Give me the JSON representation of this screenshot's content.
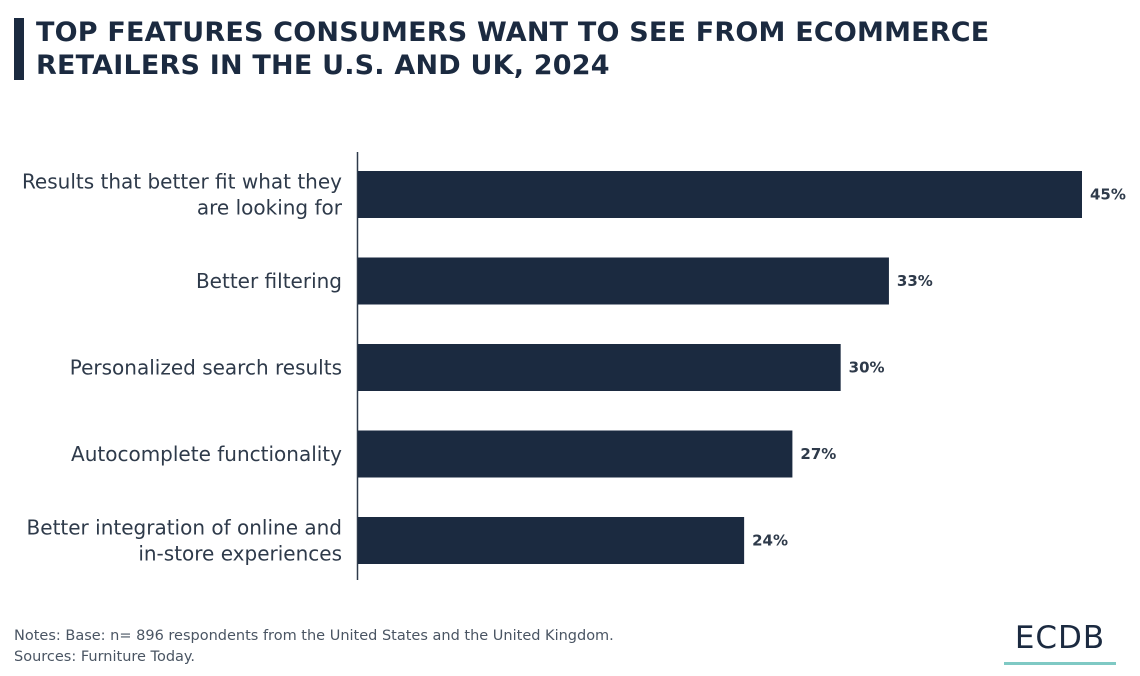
{
  "chart_data": {
    "type": "bar",
    "orientation": "horizontal",
    "title": "TOP FEATURES CONSUMERS WANT TO SEE FROM ECOMMERCE RETAILERS IN THE U.S. AND UK, 2024",
    "categories": [
      [
        "Results that better fit what they",
        "are looking for"
      ],
      [
        "Better filtering"
      ],
      [
        "Personalized search results"
      ],
      [
        "Autocomplete functionality"
      ],
      [
        "Better integration of online and",
        "in-store experiences"
      ]
    ],
    "values": [
      45,
      33,
      30,
      27,
      24
    ],
    "value_labels": [
      "45%",
      "33%",
      "30%",
      "27%",
      "24%"
    ],
    "unit": "%",
    "xlim": [
      0,
      45
    ],
    "bar_color": "#1b2a40",
    "grid": false
  },
  "notes": {
    "line1": "Notes: Base: n= 896 respondents from the United States and the United Kingdom.",
    "line2": "Sources: Furniture Today."
  },
  "logo": {
    "text": "ECDB",
    "accent": "#7fc9c4"
  }
}
